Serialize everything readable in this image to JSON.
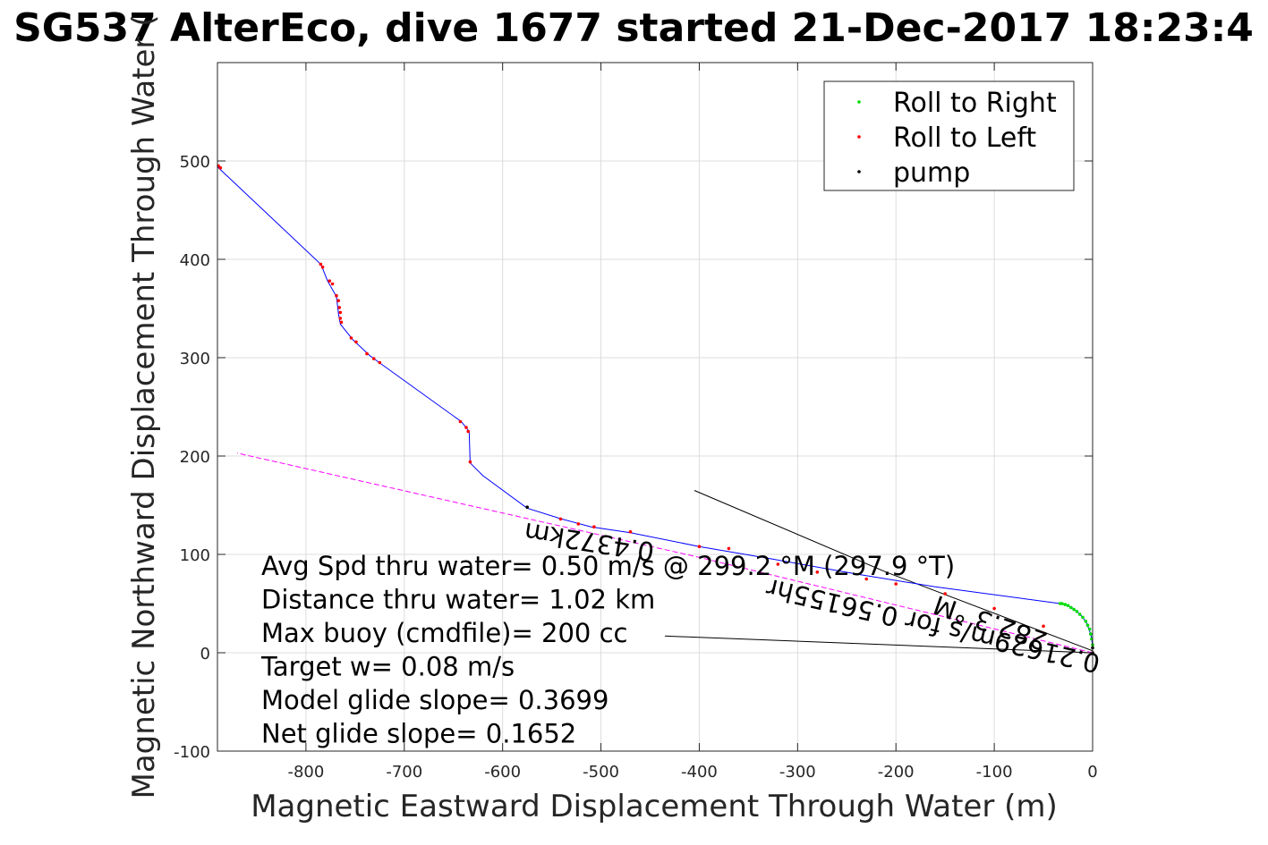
{
  "chart_data": {
    "type": "scatter",
    "title": "SG537 AlterEco, dive 1677 started 21-Dec-2017 18:23:4",
    "xlabel": "Magnetic Eastward Displacement Through Water (m)",
    "ylabel": "Magnetic Northward Displacement Through Water (",
    "xlim": [
      -890,
      0
    ],
    "ylim": [
      -100,
      600
    ],
    "grid": true,
    "x_ticks": [
      -800,
      -700,
      -600,
      -500,
      -400,
      -300,
      -200,
      -100,
      0
    ],
    "y_ticks": [
      -100,
      0,
      100,
      200,
      300,
      400,
      500
    ],
    "x_tick_labels": [
      "-800",
      "-700",
      "-600",
      "-500",
      "-400",
      "-300",
      "-200",
      "-100",
      "0"
    ],
    "y_tick_labels": [
      "-100",
      "0",
      "100",
      "200",
      "300",
      "400",
      "500"
    ],
    "legend": {
      "position": "top-right",
      "entries": [
        {
          "label": "Roll to Right",
          "color": "#00dd00"
        },
        {
          "label": "Roll to Left",
          "color": "#ff0000"
        },
        {
          "label": "pump",
          "color": "#000000"
        }
      ]
    },
    "series": [
      {
        "kind": "track",
        "color": "#0000ff",
        "points": [
          [
            0,
            5
          ],
          [
            -1,
            15
          ],
          [
            -3,
            22
          ],
          [
            -6,
            30
          ],
          [
            -10,
            36
          ],
          [
            -15,
            41
          ],
          [
            -21,
            46
          ],
          [
            -28,
            49
          ],
          [
            -33,
            50
          ],
          [
            -160,
            67
          ],
          [
            -240,
            80
          ],
          [
            -330,
            96
          ],
          [
            -400,
            108
          ],
          [
            -470,
            122
          ],
          [
            -510,
            128
          ],
          [
            -540,
            136
          ],
          [
            -575,
            147
          ],
          [
            -620,
            180
          ],
          [
            -633,
            193
          ],
          [
            -634,
            225
          ],
          [
            -642,
            235
          ],
          [
            -724,
            294
          ],
          [
            -735,
            302
          ],
          [
            -752,
            318
          ],
          [
            -765,
            334
          ],
          [
            -767,
            345
          ],
          [
            -769,
            362
          ],
          [
            -778,
            378
          ],
          [
            -784,
            393
          ],
          [
            -786,
            396
          ],
          [
            -890,
            494
          ]
        ]
      },
      {
        "kind": "track",
        "color": "#ff00ff",
        "dashed": true,
        "points": [
          [
            0,
            0
          ],
          [
            -400,
            97
          ],
          [
            -870,
            203
          ]
        ]
      },
      {
        "kind": "points",
        "label": "Roll to Right",
        "color": "#00dd00",
        "points": [
          [
            0,
            8
          ],
          [
            -1,
            14
          ],
          [
            -2,
            19
          ],
          [
            -3,
            24
          ],
          [
            -5,
            28
          ],
          [
            -7,
            32
          ],
          [
            -10,
            36
          ],
          [
            -13,
            39
          ],
          [
            -16,
            42
          ],
          [
            -19,
            44
          ],
          [
            -22,
            46
          ],
          [
            -25,
            48
          ],
          [
            -28,
            49
          ],
          [
            -31,
            50
          ],
          [
            -33,
            50
          ]
        ]
      },
      {
        "kind": "points",
        "label": "Roll to Left",
        "color": "#ff0000",
        "points": [
          [
            -889,
            495
          ],
          [
            -887,
            493
          ],
          [
            -785,
            395
          ],
          [
            -783,
            392
          ],
          [
            -776,
            378
          ],
          [
            -773,
            375
          ],
          [
            -769,
            363
          ],
          [
            -767,
            358
          ],
          [
            -766,
            351
          ],
          [
            -765,
            346
          ],
          [
            -765,
            340
          ],
          [
            -764,
            336
          ],
          [
            -754,
            320
          ],
          [
            -749,
            316
          ],
          [
            -738,
            304
          ],
          [
            -731,
            299
          ],
          [
            -725,
            295
          ],
          [
            -643,
            235
          ],
          [
            -637,
            229
          ],
          [
            -635,
            225
          ],
          [
            -633,
            194
          ],
          [
            -541,
            136
          ],
          [
            -523,
            131
          ],
          [
            -507,
            128
          ],
          [
            -470,
            123
          ],
          [
            -400,
            108
          ],
          [
            -370,
            106
          ],
          [
            -320,
            90
          ],
          [
            -280,
            82
          ],
          [
            -230,
            75
          ],
          [
            -200,
            70
          ],
          [
            -150,
            60
          ],
          [
            -100,
            45
          ],
          [
            -50,
            27
          ],
          [
            0,
            0
          ]
        ]
      },
      {
        "kind": "points",
        "label": "pump",
        "color": "#000000",
        "points": [
          [
            0,
            5
          ],
          [
            0,
            0
          ],
          [
            -575,
            148
          ]
        ]
      }
    ],
    "annotation_lines": [
      {
        "kind": "current",
        "color": "#000000",
        "points": [
          [
            -405,
            165
          ],
          [
            -210,
            82
          ],
          [
            0,
            2
          ]
        ]
      },
      {
        "kind": "buoy",
        "color": "#000000",
        "points": [
          [
            -435,
            17
          ],
          [
            0,
            0
          ]
        ]
      }
    ],
    "annotations": [
      "Avg Spd thru water=  0.50 m/s @ 299.2 °M (297.9 °T)",
      "Distance thru water=  1.02 km",
      "Max buoy (cmdfile)= 200 cc",
      "Target w= 0.08 m/s",
      "Model glide slope= 0.3699",
      "Net glide slope= 0.1652"
    ],
    "current_labels": [
      "282.3 °M",
      "0.21629m/s for 0.56155hr",
      "0.4372km"
    ]
  }
}
